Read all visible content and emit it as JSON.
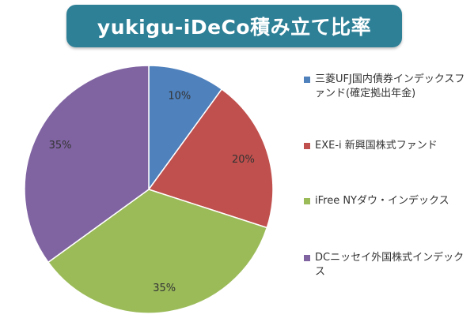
{
  "chart_data": {
    "type": "pie",
    "title": "yukigu-iDeCo積み立て比率",
    "categories": [
      "三菱UFJ国内債券インデックスファンド(確定拠出年金)",
      "EXE-i 新興国株式ファンド",
      "iFree NYダウ・インデックス",
      "DCニッセイ外国株式インデックス"
    ],
    "values": [
      10,
      20,
      35,
      35
    ],
    "data_labels": [
      "10%",
      "20%",
      "35%",
      "35%"
    ],
    "colors": [
      "#4f81bd",
      "#c0504d",
      "#9bbb59",
      "#8064a2"
    ],
    "legend_position": "right"
  }
}
